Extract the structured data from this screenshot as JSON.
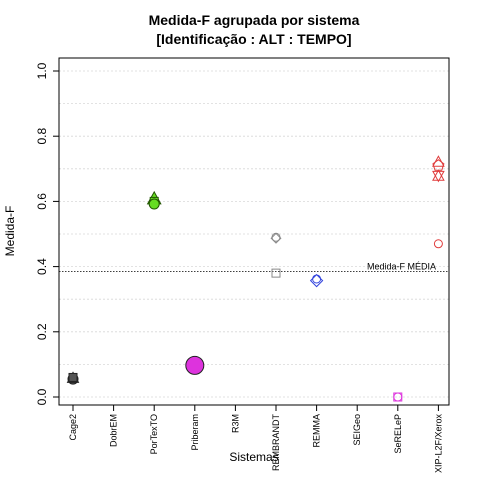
{
  "chart_data": {
    "type": "scatter",
    "title_line1": "Medida-F agrupada por sistema",
    "title_line2": "[Identificação : ALT : TEMPO]",
    "xlabel": "Sistemas",
    "ylabel": "Medida-F",
    "ylim": [
      0,
      1
    ],
    "yticks": [
      "0.0",
      "0.2",
      "0.4",
      "0.6",
      "0.8",
      "1.0"
    ],
    "grid": "horizontal-dotted",
    "categories": [
      "Cage2",
      "DobrEM",
      "PorTexTO",
      "Priberam",
      "R3M",
      "REMBRANDT",
      "REMMA",
      "SEIGeo",
      "SeRELeP",
      "XIP-L2F/Xerox"
    ],
    "reference_line": {
      "label": "Medida-F MÉDIA",
      "value": 0.385
    },
    "points": [
      {
        "category": "Cage2",
        "y": 0.055,
        "shape": "circle",
        "size": 5,
        "fill": "#555555",
        "stroke": "#222222"
      },
      {
        "category": "Cage2",
        "y": 0.057,
        "shape": "triangle",
        "size": 5,
        "fill": "#555555",
        "stroke": "#222222"
      },
      {
        "category": "Cage2",
        "y": 0.06,
        "shape": "square",
        "size": 4,
        "fill": "#555555",
        "stroke": "#222222"
      },
      {
        "category": "PorTexTO",
        "y": 0.607,
        "shape": "triangle",
        "size": 6,
        "fill": "#66dd22",
        "stroke": "#225500"
      },
      {
        "category": "PorTexTO",
        "y": 0.6,
        "shape": "square",
        "size": 4,
        "fill": "#66dd22",
        "stroke": "#225500"
      },
      {
        "category": "PorTexTO",
        "y": 0.592,
        "shape": "circle",
        "size": 5,
        "fill": "#66dd22",
        "stroke": "#225500"
      },
      {
        "category": "Priberam",
        "y": 0.097,
        "shape": "circle",
        "size": 9,
        "fill": "#dd33dd",
        "stroke": "#222222"
      },
      {
        "category": "REMBRANDT",
        "y": 0.49,
        "shape": "circle",
        "size": 4,
        "fill": "none",
        "stroke": "#888888"
      },
      {
        "category": "REMBRANDT",
        "y": 0.487,
        "shape": "diamond",
        "size": 4,
        "fill": "none",
        "stroke": "#888888"
      },
      {
        "category": "REMBRANDT",
        "y": 0.38,
        "shape": "square",
        "size": 4,
        "fill": "none",
        "stroke": "#888888"
      },
      {
        "category": "REMMA",
        "y": 0.362,
        "shape": "circle",
        "size": 4,
        "fill": "none",
        "stroke": "#3344dd"
      },
      {
        "category": "REMMA",
        "y": 0.357,
        "shape": "diamond",
        "size": 5,
        "fill": "none",
        "stroke": "#3344dd"
      },
      {
        "category": "SeRELeP",
        "y": 0.0,
        "shape": "square",
        "size": 4,
        "fill": "none",
        "stroke": "#dd33dd"
      },
      {
        "category": "SeRELeP",
        "y": 0.0,
        "shape": "circle",
        "size": 4,
        "fill": "none",
        "stroke": "#dd33dd"
      },
      {
        "category": "XIP-L2F/Xerox",
        "y": 0.72,
        "shape": "triangle",
        "size": 5,
        "fill": "none",
        "stroke": "#e03c3c"
      },
      {
        "category": "XIP-L2F/Xerox",
        "y": 0.71,
        "shape": "pentagon",
        "size": 5,
        "fill": "none",
        "stroke": "#e03c3c"
      },
      {
        "category": "XIP-L2F/Xerox",
        "y": 0.68,
        "shape": "triangle-down",
        "size": 5,
        "fill": "none",
        "stroke": "#e03c3c"
      },
      {
        "category": "XIP-L2F/Xerox",
        "y": 0.677,
        "shape": "triangle",
        "size": 5,
        "fill": "none",
        "stroke": "#e03c3c"
      },
      {
        "category": "XIP-L2F/Xerox",
        "y": 0.47,
        "shape": "circle",
        "size": 4,
        "fill": "none",
        "stroke": "#e03c3c"
      }
    ]
  }
}
